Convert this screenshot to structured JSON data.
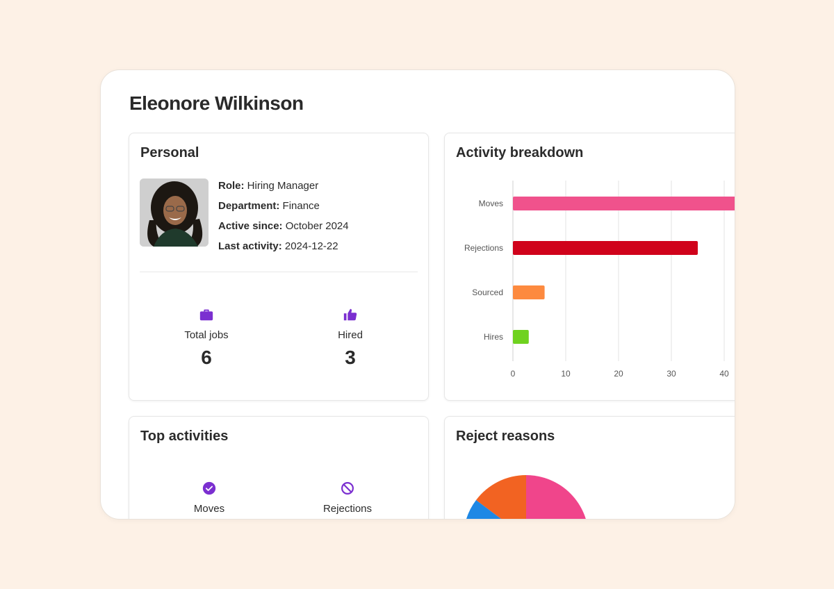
{
  "page": {
    "title": "Eleonore Wilkinson"
  },
  "personal": {
    "title": "Personal",
    "role_label": "Role:",
    "role_value": "Hiring Manager",
    "department_label": "Department:",
    "department_value": "Finance",
    "active_label": "Active since:",
    "active_value": "October 2024",
    "last_label": "Last activity:",
    "last_value": "2024-12-22",
    "stats": [
      {
        "label": "Total jobs",
        "value": "6",
        "icon": "briefcase-icon"
      },
      {
        "label": "Hired",
        "value": "3",
        "icon": "thumbs-up-icon"
      }
    ]
  },
  "activity": {
    "title": "Activity breakdown"
  },
  "chart_data": {
    "type": "bar",
    "orientation": "horizontal",
    "categories": [
      "Moves",
      "Rejections",
      "Sourced",
      "Hires"
    ],
    "values": [
      45,
      35,
      6,
      3
    ],
    "colors": [
      "#f0528c",
      "#d0021b",
      "#fd8a3f",
      "#6fd21f"
    ],
    "xticks": [
      0,
      10,
      20,
      30,
      40
    ],
    "xlim": [
      0,
      50
    ],
    "grid": true
  },
  "top_activities": {
    "title": "Top activities",
    "items": [
      {
        "label": "Moves",
        "icon": "check-circle-icon"
      },
      {
        "label": "Rejections",
        "icon": "prohibited-icon"
      }
    ]
  },
  "reject_reasons": {
    "title": "Reject reasons",
    "colors": [
      "#f0458b",
      "#f26322",
      "#1e88e5"
    ]
  },
  "colors": {
    "accent": "#7b2fd0",
    "background": "#fdf1e6"
  }
}
